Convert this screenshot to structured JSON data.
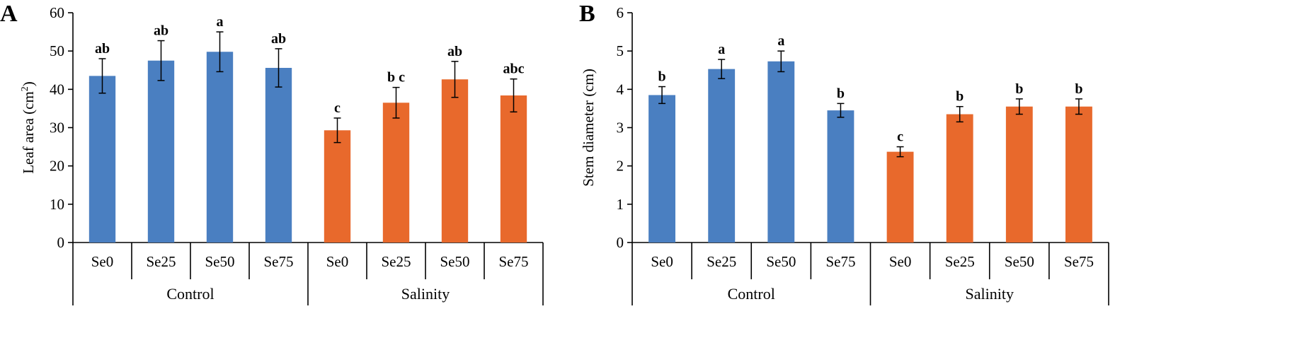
{
  "chart_data": [
    {
      "panel": "A",
      "type": "bar",
      "ylabel": "Leaf area (cm",
      "ylabel_sup": "2",
      "ylabel_close": ")",
      "ylim": [
        0,
        60
      ],
      "yticks": [
        "0",
        "10",
        "20",
        "30",
        "40",
        "50",
        "60"
      ],
      "tick_values": [
        0,
        10,
        20,
        30,
        40,
        50,
        60
      ],
      "groups": [
        {
          "name": "Control",
          "color": "#4a7fc1",
          "categories": [
            "Se0",
            "Se25",
            "Se50",
            "Se75"
          ],
          "values": [
            43.5,
            47.5,
            49.8,
            45.6
          ],
          "errors": [
            4.5,
            5.2,
            5.2,
            5.0
          ],
          "letters": [
            "ab",
            "ab",
            "a",
            "ab"
          ]
        },
        {
          "name": "Salinity",
          "color": "#e8692c",
          "categories": [
            "Se0",
            "Se25",
            "Se50",
            "Se75"
          ],
          "values": [
            29.3,
            36.5,
            42.6,
            38.4
          ],
          "errors": [
            3.2,
            4.0,
            4.7,
            4.3
          ],
          "letters": [
            "c",
            "b c",
            "ab",
            "abc"
          ]
        }
      ]
    },
    {
      "panel": "B",
      "type": "bar",
      "ylabel": "Stem diameter (cm)",
      "ylabel_sup": "",
      "ylabel_close": "",
      "ylim": [
        0,
        6
      ],
      "yticks": [
        "0",
        "1",
        "2",
        "3",
        "4",
        "5",
        "6"
      ],
      "tick_values": [
        0,
        1,
        2,
        3,
        4,
        5,
        6
      ],
      "groups": [
        {
          "name": "Control",
          "color": "#4a7fc1",
          "categories": [
            "Se0",
            "Se25",
            "Se50",
            "Se75"
          ],
          "values": [
            3.85,
            4.53,
            4.73,
            3.45
          ],
          "errors": [
            0.22,
            0.25,
            0.27,
            0.18
          ],
          "letters": [
            "b",
            "a",
            "a",
            "b"
          ]
        },
        {
          "name": "Salinity",
          "color": "#e8692c",
          "categories": [
            "Se0",
            "Se25",
            "Se50",
            "Se75"
          ],
          "values": [
            2.37,
            3.35,
            3.55,
            3.55
          ],
          "errors": [
            0.13,
            0.2,
            0.2,
            0.2
          ],
          "letters": [
            "c",
            "b",
            "b",
            "b"
          ]
        }
      ]
    }
  ]
}
